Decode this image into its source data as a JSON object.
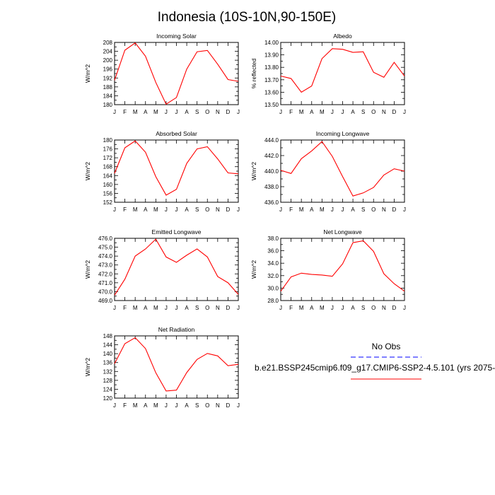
{
  "figure_title": "Indonesia (10S-10N,90-150E)",
  "colors": {
    "model": "#ff0000",
    "obs": "#0000ff"
  },
  "legend": {
    "obs_label": "No Obs",
    "model_label": "b.e21.BSSP245cmip6.f09_g17.CMIP6-SSP2-4.5.101 (yrs 2075-"
  },
  "chart_data": [
    {
      "type": "line",
      "title": "Incoming Solar",
      "ylabel": "W/m^2",
      "x": [
        "J",
        "F",
        "M",
        "A",
        "M",
        "J",
        "J",
        "A",
        "S",
        "O",
        "N",
        "D",
        "J"
      ],
      "ylim": [
        180,
        208
      ],
      "yticks": [
        "180",
        "184",
        "188",
        "192",
        "196",
        "200",
        "204",
        "208"
      ],
      "series": [
        {
          "name": "model",
          "values": [
            191,
            204.5,
            207.8,
            201.8,
            190,
            180.2,
            183.2,
            196,
            203.8,
            204.4,
            198.2,
            191.3,
            190.5
          ]
        }
      ]
    },
    {
      "type": "line",
      "title": "Albedo",
      "ylabel": "% reflected",
      "x": [
        "J",
        "F",
        "M",
        "A",
        "M",
        "J",
        "J",
        "A",
        "S",
        "O",
        "N",
        "D",
        "J"
      ],
      "ylim": [
        13.5,
        14.0
      ],
      "yticks": [
        "13.50",
        "13.60",
        "13.70",
        "13.80",
        "13.90",
        "14.00"
      ],
      "series": [
        {
          "name": "model",
          "values": [
            13.73,
            13.71,
            13.6,
            13.65,
            13.87,
            13.95,
            13.945,
            13.92,
            13.925,
            13.76,
            13.72,
            13.84,
            13.73
          ]
        }
      ]
    },
    {
      "type": "line",
      "title": "Absorbed Solar",
      "ylabel": "W/m^2",
      "x": [
        "J",
        "F",
        "M",
        "A",
        "M",
        "J",
        "J",
        "A",
        "S",
        "O",
        "N",
        "D",
        "J"
      ],
      "ylim": [
        152,
        180
      ],
      "yticks": [
        "152",
        "156",
        "160",
        "164",
        "168",
        "172",
        "176",
        "180"
      ],
      "series": [
        {
          "name": "model",
          "values": [
            165,
            176.5,
            179.6,
            174.5,
            163.5,
            155.2,
            157.8,
            169.5,
            176,
            177,
            171.5,
            165.2,
            164.8
          ]
        }
      ]
    },
    {
      "type": "line",
      "title": "Incoming Longwave",
      "ylabel": "W/m^2",
      "x": [
        "J",
        "F",
        "M",
        "A",
        "M",
        "J",
        "J",
        "A",
        "S",
        "O",
        "N",
        "D",
        "J"
      ],
      "ylim": [
        436.0,
        444.0
      ],
      "yticks": [
        "436.0",
        "438.0",
        "440.0",
        "442.0",
        "444.0"
      ],
      "series": [
        {
          "name": "model",
          "values": [
            440.1,
            439.7,
            441.6,
            442.6,
            443.8,
            441.9,
            439.3,
            436.8,
            437.2,
            437.9,
            439.5,
            440.3,
            440
          ]
        }
      ]
    },
    {
      "type": "line",
      "title": "Emitted Longwave",
      "ylabel": "W/m^2",
      "x": [
        "J",
        "F",
        "M",
        "A",
        "M",
        "J",
        "J",
        "A",
        "S",
        "O",
        "N",
        "D",
        "J"
      ],
      "ylim": [
        469.0,
        476.0
      ],
      "yticks": [
        "469.0",
        "470.0",
        "471.0",
        "472.0",
        "473.0",
        "474.0",
        "475.0",
        "476.0"
      ],
      "series": [
        {
          "name": "model",
          "values": [
            469.6,
            471.4,
            474,
            474.8,
            475.9,
            473.9,
            473.3,
            474.1,
            474.8,
            473.9,
            471.7,
            471.0,
            469.7
          ]
        }
      ]
    },
    {
      "type": "line",
      "title": "Net Longwave",
      "ylabel": "W/m^2",
      "x": [
        "J",
        "F",
        "M",
        "A",
        "M",
        "J",
        "J",
        "A",
        "S",
        "O",
        "N",
        "D",
        "J"
      ],
      "ylim": [
        28.0,
        38.0
      ],
      "yticks": [
        "28.0",
        "30.0",
        "32.0",
        "34.0",
        "36.0",
        "38.0"
      ],
      "series": [
        {
          "name": "model",
          "values": [
            29.5,
            31.8,
            32.4,
            32.2,
            32.1,
            31.9,
            33.9,
            37.3,
            37.6,
            35.9,
            32.3,
            30.7,
            29.5
          ]
        }
      ]
    },
    {
      "type": "line",
      "title": "Net Radiation",
      "ylabel": "W/m^2",
      "x": [
        "J",
        "F",
        "M",
        "A",
        "M",
        "J",
        "J",
        "A",
        "S",
        "O",
        "N",
        "D",
        "J"
      ],
      "ylim": [
        120,
        148
      ],
      "yticks": [
        "120",
        "124",
        "128",
        "132",
        "136",
        "140",
        "144",
        "148"
      ],
      "series": [
        {
          "name": "model",
          "values": [
            135.5,
            144.5,
            147.2,
            142.3,
            131.4,
            123.2,
            123.6,
            131.5,
            137.4,
            140.1,
            139,
            134.6,
            135.2
          ]
        }
      ]
    }
  ]
}
